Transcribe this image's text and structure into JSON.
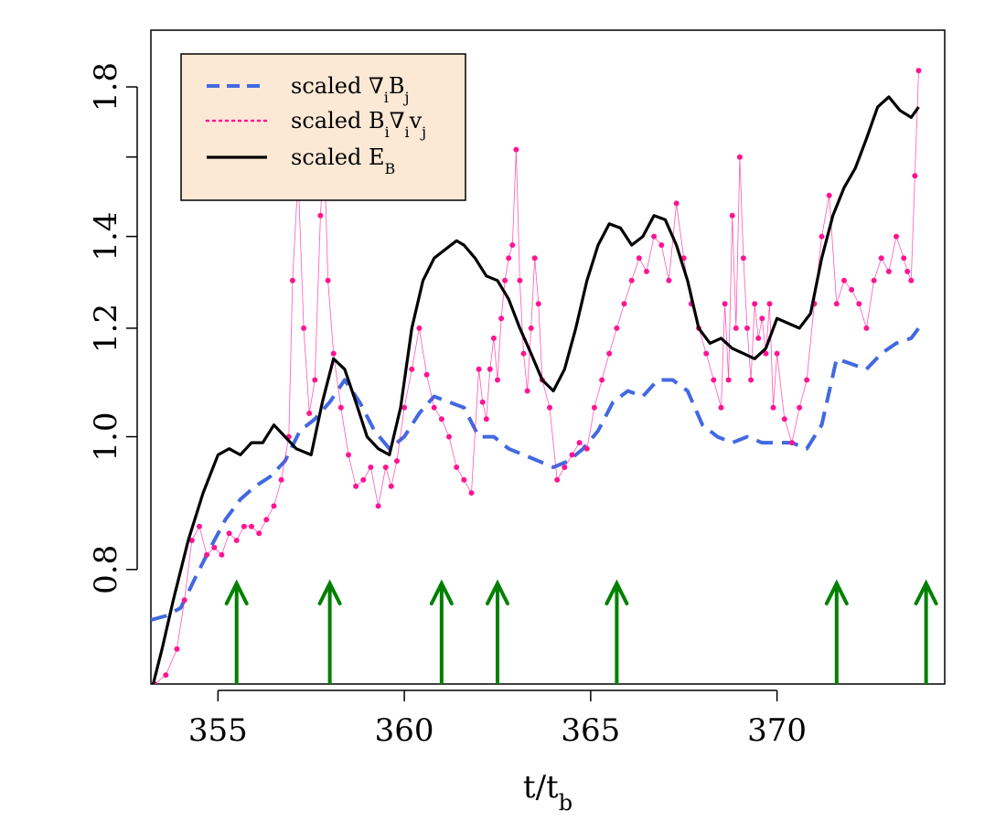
{
  "chart_data": {
    "type": "line",
    "title": "",
    "xlabel": "t/t",
    "xlabel_sub": "b",
    "ylabel": "",
    "y_scale": "log",
    "xlim": [
      353.2,
      374.5
    ],
    "ylim": [
      0.66,
      1.98
    ],
    "x_ticks": [
      355,
      360,
      365,
      370
    ],
    "x_tick_labels": [
      "355",
      "360",
      "365",
      "370"
    ],
    "y_ticks": [
      0.8,
      1.0,
      1.2,
      1.4,
      1.8
    ],
    "y_tick_labels": [
      "0.8",
      "1.0",
      "1.2",
      "1.4",
      "1.8"
    ],
    "grid": false,
    "legend_position": "top-left",
    "legend_background": "#fbe9d6",
    "series": [
      {
        "key": "gradB",
        "legend_parts": [
          {
            "t": "scaled ∇",
            "s": ""
          },
          {
            "t": "i",
            "s": "sub"
          },
          {
            "t": "B",
            "s": ""
          },
          {
            "t": "j",
            "s": "sub"
          }
        ],
        "color": "#4169e1",
        "style": "dashed",
        "x": [
          353.2,
          353.6,
          354.0,
          354.4,
          354.8,
          355.2,
          355.6,
          356.0,
          356.4,
          356.8,
          357.2,
          357.6,
          358.0,
          358.4,
          358.8,
          359.2,
          359.6,
          360.0,
          360.4,
          360.8,
          361.2,
          361.6,
          362.0,
          362.4,
          362.8,
          363.2,
          363.6,
          364.0,
          364.4,
          364.8,
          365.2,
          365.6,
          366.0,
          366.4,
          366.8,
          367.2,
          367.6,
          368.0,
          368.4,
          368.8,
          369.2,
          369.6,
          370.0,
          370.4,
          370.8,
          371.2,
          371.6,
          372.0,
          372.4,
          372.8,
          373.2,
          373.6,
          373.8
        ],
        "y": [
          0.735,
          0.74,
          0.75,
          0.79,
          0.83,
          0.87,
          0.9,
          0.92,
          0.935,
          0.96,
          1.01,
          1.03,
          1.06,
          1.1,
          1.06,
          1.01,
          0.98,
          1.0,
          1.04,
          1.07,
          1.06,
          1.05,
          1.0,
          1.0,
          0.98,
          0.97,
          0.96,
          0.95,
          0.96,
          0.98,
          1.01,
          1.06,
          1.08,
          1.07,
          1.1,
          1.1,
          1.08,
          1.02,
          1.0,
          0.99,
          1.0,
          0.99,
          0.99,
          0.99,
          0.98,
          1.02,
          1.14,
          1.13,
          1.12,
          1.15,
          1.17,
          1.18,
          1.2
        ]
      },
      {
        "key": "BgradV",
        "legend_parts": [
          {
            "t": "scaled B",
            "s": ""
          },
          {
            "t": "i",
            "s": "sub"
          },
          {
            "t": "∇",
            "s": ""
          },
          {
            "t": "i",
            "s": "sub"
          },
          {
            "t": "v",
            "s": ""
          },
          {
            "t": "j",
            "s": "sub"
          }
        ],
        "color": "#ff1493",
        "style": "dotted",
        "x": [
          353.3,
          353.6,
          353.9,
          354.1,
          354.3,
          354.5,
          354.7,
          354.9,
          355.1,
          355.3,
          355.5,
          355.7,
          355.9,
          356.1,
          356.3,
          356.5,
          356.7,
          356.9,
          357.0,
          357.15,
          357.3,
          357.45,
          357.6,
          357.75,
          357.85,
          357.95,
          358.1,
          358.3,
          358.5,
          358.7,
          358.9,
          359.1,
          359.3,
          359.5,
          359.65,
          359.8,
          360.0,
          360.2,
          360.4,
          360.6,
          360.8,
          361.0,
          361.2,
          361.4,
          361.6,
          361.8,
          362.0,
          362.1,
          362.2,
          362.3,
          362.4,
          362.5,
          362.6,
          362.7,
          362.8,
          362.9,
          363.0,
          363.1,
          363.2,
          363.3,
          363.4,
          363.5,
          363.6,
          363.7,
          363.9,
          364.1,
          364.3,
          364.5,
          364.7,
          364.9,
          365.1,
          365.3,
          365.5,
          365.7,
          365.9,
          366.1,
          366.3,
          366.5,
          366.7,
          366.9,
          367.1,
          367.3,
          367.5,
          367.7,
          367.9,
          368.1,
          368.3,
          368.5,
          368.6,
          368.7,
          368.8,
          368.9,
          369.0,
          369.1,
          369.2,
          369.3,
          369.4,
          369.5,
          369.6,
          369.7,
          369.8,
          369.9,
          370.0,
          370.2,
          370.4,
          370.6,
          370.8,
          371.0,
          371.2,
          371.4,
          371.6,
          371.8,
          372.0,
          372.2,
          372.4,
          372.6,
          372.8,
          373.0,
          373.2,
          373.4,
          373.5,
          373.6,
          373.7,
          373.8
        ],
        "y": [
          0.66,
          0.67,
          0.7,
          0.76,
          0.84,
          0.86,
          0.82,
          0.83,
          0.82,
          0.85,
          0.84,
          0.86,
          0.86,
          0.85,
          0.87,
          0.89,
          0.93,
          1.0,
          1.3,
          1.55,
          1.2,
          1.04,
          1.1,
          1.45,
          1.62,
          1.3,
          1.15,
          1.05,
          0.97,
          0.92,
          0.93,
          0.95,
          0.89,
          0.95,
          0.92,
          0.96,
          1.05,
          1.12,
          1.2,
          1.11,
          1.05,
          1.03,
          1.0,
          0.95,
          0.93,
          0.91,
          1.12,
          1.06,
          1.03,
          1.12,
          1.18,
          1.1,
          1.22,
          1.3,
          1.35,
          1.38,
          1.62,
          1.3,
          1.15,
          1.08,
          1.2,
          1.35,
          1.25,
          1.1,
          1.05,
          0.93,
          0.95,
          0.97,
          0.99,
          0.98,
          1.05,
          1.1,
          1.15,
          1.2,
          1.25,
          1.3,
          1.35,
          1.32,
          1.4,
          1.38,
          1.3,
          1.48,
          1.35,
          1.25,
          1.2,
          1.15,
          1.1,
          1.05,
          1.25,
          1.1,
          1.45,
          1.2,
          1.6,
          1.35,
          1.2,
          1.1,
          1.25,
          1.18,
          1.22,
          1.15,
          1.25,
          1.05,
          1.15,
          1.03,
          0.99,
          1.05,
          1.1,
          1.25,
          1.4,
          1.5,
          1.25,
          1.3,
          1.28,
          1.25,
          1.2,
          1.3,
          1.35,
          1.32,
          1.4,
          1.35,
          1.32,
          1.3,
          1.55,
          1.85
        ]
      },
      {
        "key": "EB",
        "legend_parts": [
          {
            "t": "scaled E",
            "s": ""
          },
          {
            "t": "B",
            "s": "sub"
          }
        ],
        "color": "#000000",
        "style": "solid",
        "x": [
          353.2,
          353.5,
          353.8,
          354.2,
          354.6,
          355.0,
          355.3,
          355.6,
          355.9,
          356.2,
          356.5,
          356.8,
          357.1,
          357.5,
          357.8,
          358.1,
          358.4,
          358.7,
          359.0,
          359.3,
          359.6,
          359.9,
          360.2,
          360.5,
          360.8,
          361.1,
          361.4,
          361.6,
          361.9,
          362.2,
          362.5,
          362.8,
          363.1,
          363.4,
          363.7,
          364.0,
          364.3,
          364.6,
          364.9,
          365.2,
          365.5,
          365.8,
          366.1,
          366.4,
          366.7,
          367.0,
          367.3,
          367.6,
          367.9,
          368.2,
          368.5,
          368.8,
          369.1,
          369.4,
          369.7,
          370.0,
          370.3,
          370.6,
          370.9,
          371.2,
          371.5,
          371.8,
          372.1,
          372.4,
          372.7,
          373.0,
          373.3,
          373.6,
          373.8
        ],
        "y": [
          0.65,
          0.7,
          0.76,
          0.84,
          0.91,
          0.97,
          0.98,
          0.97,
          0.99,
          0.99,
          1.02,
          1.0,
          0.98,
          0.97,
          1.06,
          1.14,
          1.12,
          1.06,
          1.0,
          0.98,
          0.97,
          1.05,
          1.2,
          1.3,
          1.35,
          1.37,
          1.39,
          1.38,
          1.35,
          1.31,
          1.3,
          1.26,
          1.2,
          1.15,
          1.1,
          1.08,
          1.12,
          1.2,
          1.3,
          1.38,
          1.43,
          1.42,
          1.38,
          1.4,
          1.45,
          1.44,
          1.38,
          1.3,
          1.2,
          1.17,
          1.18,
          1.16,
          1.15,
          1.14,
          1.16,
          1.22,
          1.21,
          1.2,
          1.23,
          1.35,
          1.45,
          1.52,
          1.57,
          1.65,
          1.74,
          1.77,
          1.73,
          1.71,
          1.74
        ]
      }
    ],
    "arrows": {
      "color": "#008000",
      "x": [
        355.5,
        358.0,
        361.0,
        362.5,
        365.7,
        371.6,
        374.0
      ]
    }
  }
}
